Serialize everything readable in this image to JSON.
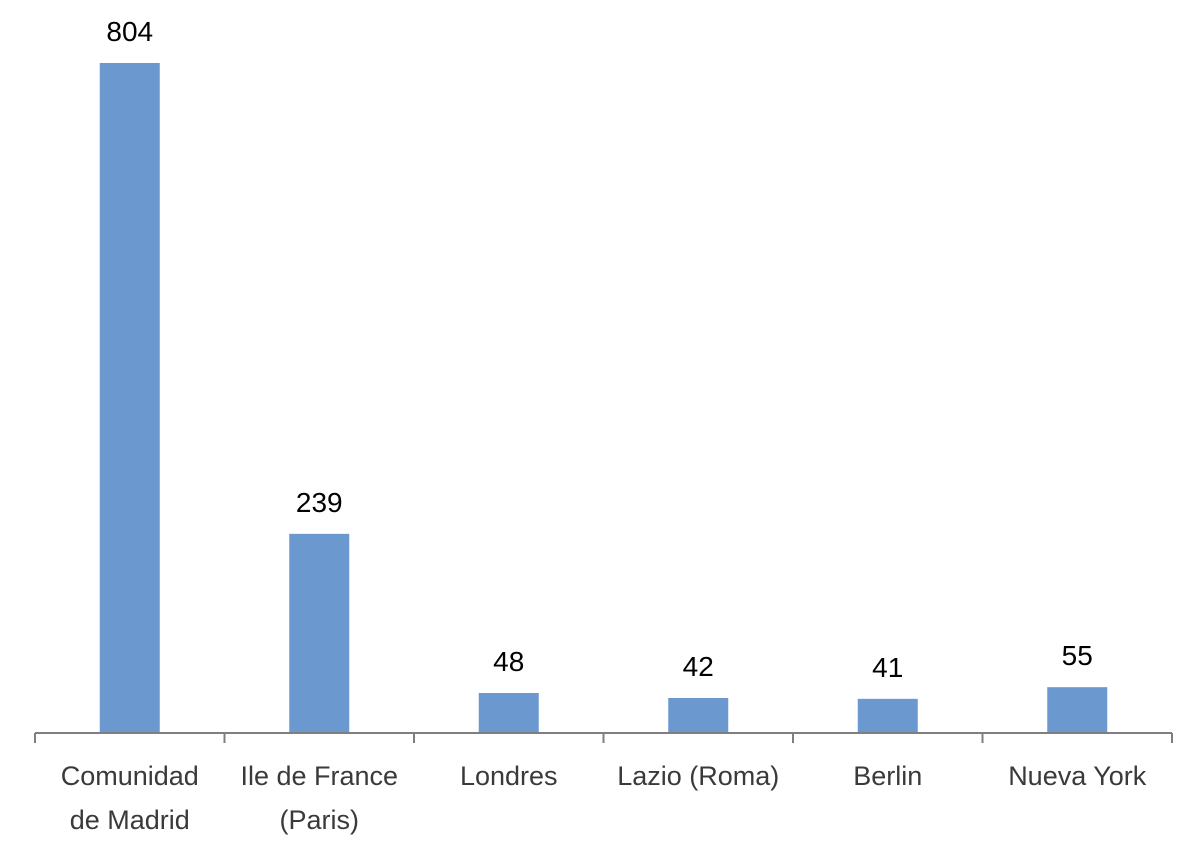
{
  "chart_data": {
    "type": "bar",
    "categories": [
      [
        "Comunidad",
        "de Madrid"
      ],
      [
        "Ile de France",
        "(Paris)"
      ],
      [
        "Londres"
      ],
      [
        "Lazio (Roma)"
      ],
      [
        "Berlin"
      ],
      [
        "Nueva York"
      ]
    ],
    "values": [
      804,
      239,
      48,
      42,
      41,
      55
    ],
    "data_labels": [
      "804",
      "239",
      "48",
      "42",
      "41",
      "55"
    ],
    "title": "",
    "xlabel": "",
    "ylabel": "",
    "ylim": [
      0,
      804
    ],
    "grid": false,
    "legend": "none",
    "bar_color": "#6B98CE",
    "axis_color": "#7F7F7F"
  }
}
